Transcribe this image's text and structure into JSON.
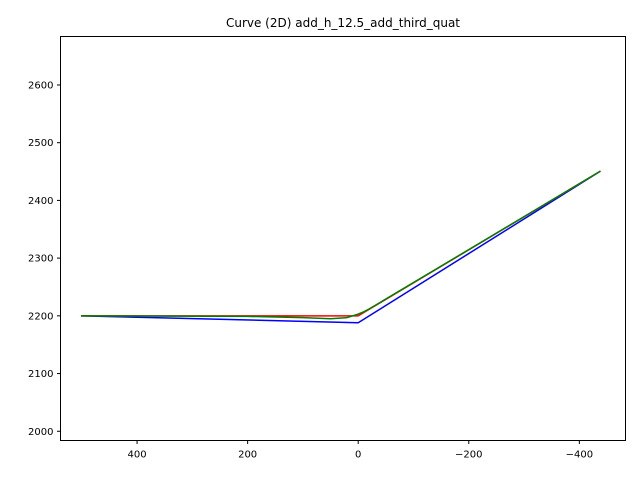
{
  "chart_data": {
    "type": "line",
    "title": "Curve (2D) add_h_12.5_add_third_quat",
    "xlabel": "",
    "ylabel": "",
    "x_inverted": true,
    "xlim": [
      538.5,
      -483.5
    ],
    "ylim": [
      1984,
      2684
    ],
    "xticks": [
      400,
      200,
      0,
      -200,
      -400
    ],
    "xtick_labels": [
      "400",
      "200",
      "0",
      "−200",
      "−400"
    ],
    "yticks": [
      2000,
      2100,
      2200,
      2300,
      2400,
      2500,
      2600
    ],
    "ytick_labels": [
      "2000",
      "2100",
      "2200",
      "2300",
      "2400",
      "2500",
      "2600"
    ],
    "grid": false,
    "legend": "none",
    "series": [
      {
        "color": "#0000ff",
        "x": [
          500,
          0,
          -437
        ],
        "y": [
          2200,
          2188,
          2450
        ]
      },
      {
        "color": "#ff0000",
        "x": [
          500,
          0,
          -437
        ],
        "y": [
          2200,
          2200,
          2450
        ]
      },
      {
        "color": "#008000",
        "x": [
          500,
          200,
          100,
          50,
          20,
          0,
          -10,
          -20,
          -437
        ],
        "y": [
          2200,
          2199,
          2197,
          2195,
          2197,
          2203,
          2207,
          2212,
          2450
        ]
      }
    ]
  }
}
